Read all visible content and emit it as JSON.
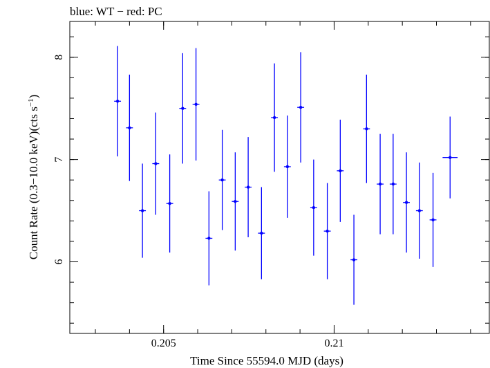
{
  "chart_data": {
    "type": "scatter",
    "title": "blue: WT − red: PC",
    "xlabel": "Time Since 55594.0 MJD (days)",
    "ylabel_main": "Count Rate (0.3−10.0 keV)(cts s",
    "ylabel_sup": "−1",
    "ylabel_end": ")",
    "xlim": [
      0.20225,
      0.21455
    ],
    "ylim": [
      5.3,
      8.35
    ],
    "x_ticks": [
      {
        "value": 0.205,
        "label": "0.205"
      },
      {
        "value": 0.21,
        "label": "0.21"
      }
    ],
    "x_minor_step": 0.001,
    "y_ticks": [
      {
        "value": 6,
        "label": "6"
      },
      {
        "value": 7,
        "label": "7"
      },
      {
        "value": 8,
        "label": "8"
      }
    ],
    "y_minor_step": 0.2,
    "series": [
      {
        "color": "#0000ff",
        "points": [
          {
            "x": 0.20365,
            "xerr": 0.0001,
            "y": 7.57,
            "yerr": 0.54
          },
          {
            "x": 0.204,
            "xerr": 0.0001,
            "y": 7.31,
            "yerr": 0.52
          },
          {
            "x": 0.20438,
            "xerr": 0.0001,
            "y": 6.5,
            "yerr": 0.46
          },
          {
            "x": 0.20477,
            "xerr": 0.0001,
            "y": 6.96,
            "yerr": 0.5
          },
          {
            "x": 0.20518,
            "xerr": 0.0001,
            "y": 6.57,
            "yerr": 0.48
          },
          {
            "x": 0.20556,
            "xerr": 0.0001,
            "y": 7.5,
            "yerr": 0.54
          },
          {
            "x": 0.20595,
            "xerr": 0.0001,
            "y": 7.54,
            "yerr": 0.55
          },
          {
            "x": 0.20633,
            "xerr": 0.0001,
            "y": 6.23,
            "yerr": 0.46
          },
          {
            "x": 0.20672,
            "xerr": 0.0001,
            "y": 6.8,
            "yerr": 0.49
          },
          {
            "x": 0.2071,
            "xerr": 0.0001,
            "y": 6.59,
            "yerr": 0.48
          },
          {
            "x": 0.20748,
            "xerr": 0.0001,
            "y": 6.73,
            "yerr": 0.49
          },
          {
            "x": 0.20787,
            "xerr": 0.0001,
            "y": 6.28,
            "yerr": 0.45
          },
          {
            "x": 0.20825,
            "xerr": 0.0001,
            "y": 7.41,
            "yerr": 0.53
          },
          {
            "x": 0.20863,
            "xerr": 0.0001,
            "y": 6.93,
            "yerr": 0.5
          },
          {
            "x": 0.20902,
            "xerr": 0.0001,
            "y": 7.51,
            "yerr": 0.54
          },
          {
            "x": 0.2094,
            "xerr": 0.0001,
            "y": 6.53,
            "yerr": 0.47
          },
          {
            "x": 0.2098,
            "xerr": 0.0001,
            "y": 6.3,
            "yerr": 0.47
          },
          {
            "x": 0.21018,
            "xerr": 0.0001,
            "y": 6.89,
            "yerr": 0.5
          },
          {
            "x": 0.21058,
            "xerr": 0.0001,
            "y": 6.02,
            "yerr": 0.44
          },
          {
            "x": 0.21095,
            "xerr": 0.0001,
            "y": 7.3,
            "yerr": 0.53
          },
          {
            "x": 0.21135,
            "xerr": 0.0001,
            "y": 6.76,
            "yerr": 0.49
          },
          {
            "x": 0.21173,
            "xerr": 0.0001,
            "y": 6.76,
            "yerr": 0.49
          },
          {
            "x": 0.21212,
            "xerr": 0.0001,
            "y": 6.58,
            "yerr": 0.49
          },
          {
            "x": 0.2125,
            "xerr": 0.0001,
            "y": 6.5,
            "yerr": 0.47
          },
          {
            "x": 0.2129,
            "xerr": 0.0001,
            "y": 6.41,
            "yerr": 0.46
          },
          {
            "x": 0.2134,
            "xerr": 0.00022,
            "y": 7.02,
            "yerr": 0.4
          }
        ]
      }
    ]
  }
}
